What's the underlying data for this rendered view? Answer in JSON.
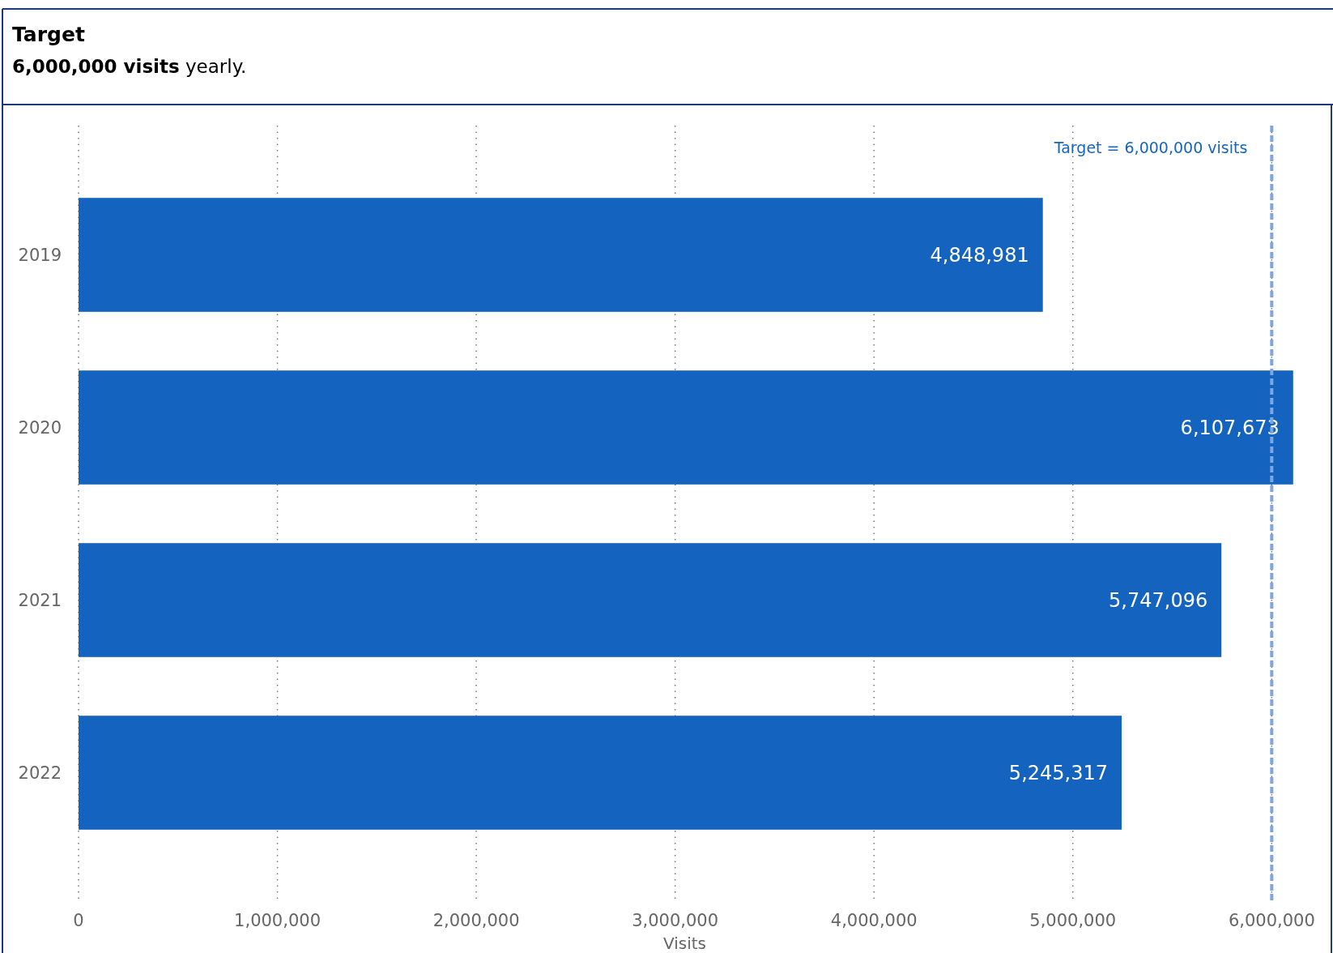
{
  "chart_data": {
    "type": "bar",
    "orientation": "horizontal",
    "title": "Target",
    "subtitle": "6,000,000 visits yearly.",
    "categories": [
      "2019",
      "2020",
      "2021",
      "2022"
    ],
    "values": [
      4848981,
      6107673,
      5747096,
      5245317
    ],
    "color": "#1363bf",
    "xlabel": "Visits",
    "xlim": [
      0,
      6300000
    ],
    "xticks": [
      {
        "value": 0,
        "label": "0"
      },
      {
        "value": 1000000,
        "label": "1,000,000"
      },
      {
        "value": 2000000,
        "label": "2,000,000"
      },
      {
        "value": 3000000,
        "label": "3,000,000"
      },
      {
        "value": 4000000,
        "label": "4,000,000"
      },
      {
        "value": 5000000,
        "label": "5,000,000"
      },
      {
        "value": 6000000,
        "label": "6,000,000"
      }
    ],
    "grid": "x",
    "value_labels": [
      "4,848,981",
      "6,107,673",
      "5,747,096",
      "5,245,317"
    ],
    "ref_lines": [
      {
        "axis": "x",
        "value": 6000000,
        "label": "Target = 6,000,000 visits",
        "color": "#7ea6e0",
        "line_style": "dashed"
      }
    ]
  }
}
